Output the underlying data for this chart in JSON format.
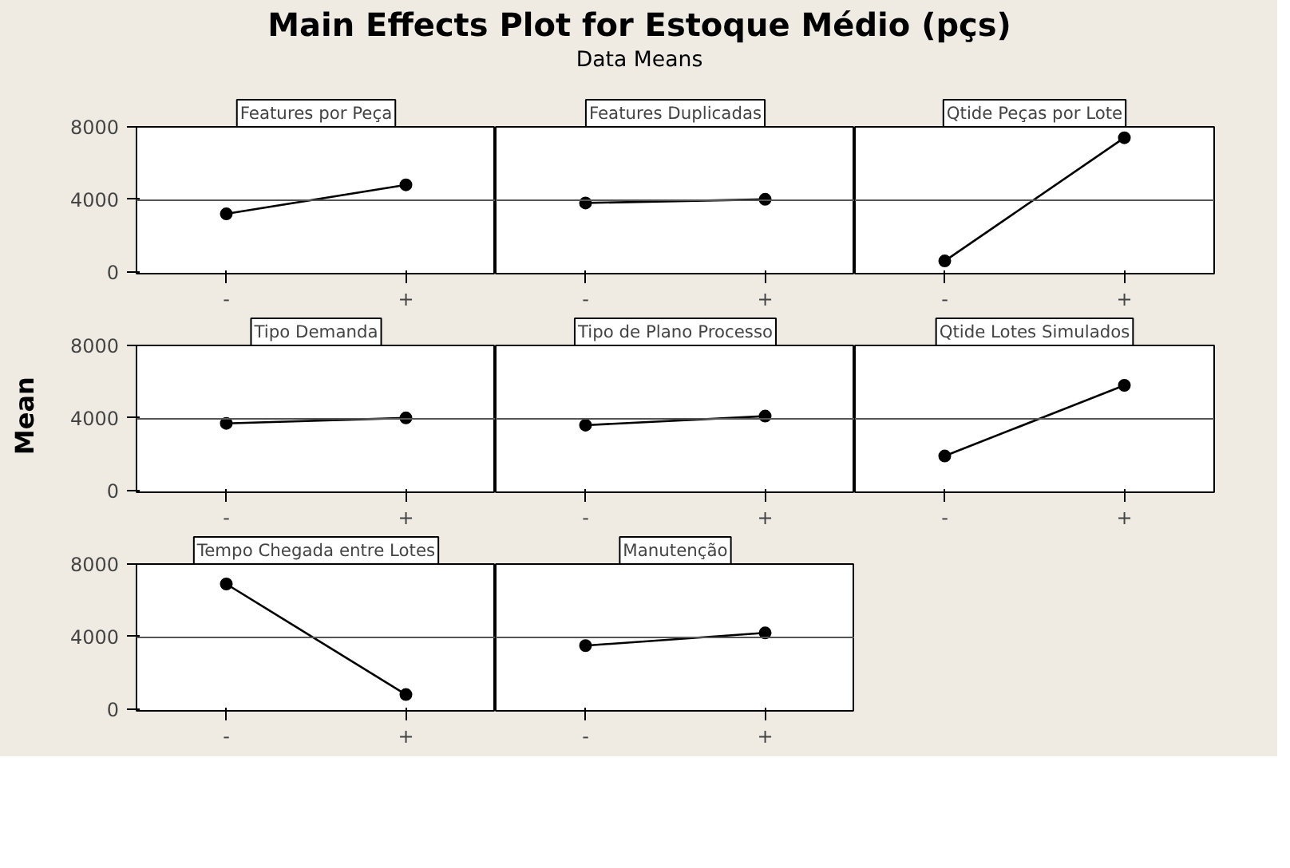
{
  "chart_data": [
    {
      "type": "other",
      "title": "Main Effects Plot for Estoque Médio (pçs)",
      "subtitle": "Data Means",
      "ylabel": "Mean"
    },
    {
      "type": "line",
      "title": "Features por Peça",
      "categories": [
        "-",
        "+"
      ],
      "series": [
        {
          "color": "#000000",
          "values": [
            3200,
            4800
          ]
        }
      ],
      "ylim": [
        -100,
        8000
      ],
      "yticks": [
        0,
        4000,
        8000
      ],
      "marker": "circle",
      "grid": false,
      "ref_lines": [
        {
          "axis": "y",
          "value": 3950,
          "color": "#555555"
        }
      ]
    },
    {
      "type": "line",
      "title": "Features Duplicadas",
      "categories": [
        "-",
        "+"
      ],
      "series": [
        {
          "color": "#000000",
          "values": [
            3800,
            4000
          ]
        }
      ],
      "ylim": [
        -100,
        8000
      ],
      "yticks": [
        0,
        4000,
        8000
      ],
      "tick_labels": "x",
      "marker": "circle",
      "grid": false,
      "ref_lines": [
        {
          "axis": "y",
          "value": 3950,
          "color": "#555555"
        }
      ]
    },
    {
      "type": "line",
      "title": "Qtide Peças por Lote",
      "categories": [
        "-",
        "+"
      ],
      "series": [
        {
          "color": "#000000",
          "values": [
            600,
            7400
          ]
        }
      ],
      "ylim": [
        -100,
        8000
      ],
      "yticks": [
        0,
        4000,
        8000
      ],
      "tick_labels": "x",
      "marker": "circle",
      "grid": false,
      "ref_lines": [
        {
          "axis": "y",
          "value": 3950,
          "color": "#555555"
        }
      ]
    },
    {
      "type": "line",
      "title": "Tipo Demanda",
      "categories": [
        "-",
        "+"
      ],
      "series": [
        {
          "color": "#000000",
          "values": [
            3700,
            4000
          ]
        }
      ],
      "ylim": [
        -100,
        8000
      ],
      "yticks": [
        0,
        4000,
        8000
      ],
      "marker": "circle",
      "grid": false,
      "ref_lines": [
        {
          "axis": "y",
          "value": 3950,
          "color": "#555555"
        }
      ]
    },
    {
      "type": "line",
      "title": "Tipo de Plano Processo",
      "categories": [
        "-",
        "+"
      ],
      "series": [
        {
          "color": "#000000",
          "values": [
            3600,
            4100
          ]
        }
      ],
      "ylim": [
        -100,
        8000
      ],
      "yticks": [
        0,
        4000,
        8000
      ],
      "tick_labels": "x",
      "marker": "circle",
      "grid": false,
      "ref_lines": [
        {
          "axis": "y",
          "value": 3950,
          "color": "#555555"
        }
      ]
    },
    {
      "type": "line",
      "title": "Qtide Lotes Simulados",
      "categories": [
        "-",
        "+"
      ],
      "series": [
        {
          "color": "#000000",
          "values": [
            1900,
            5800
          ]
        }
      ],
      "ylim": [
        -100,
        8000
      ],
      "yticks": [
        0,
        4000,
        8000
      ],
      "tick_labels": "x",
      "marker": "circle",
      "grid": false,
      "ref_lines": [
        {
          "axis": "y",
          "value": 3950,
          "color": "#555555"
        }
      ]
    },
    {
      "type": "line",
      "title": "Tempo Chegada entre Lotes",
      "categories": [
        "-",
        "+"
      ],
      "series": [
        {
          "color": "#000000",
          "values": [
            6900,
            800
          ]
        }
      ],
      "ylim": [
        -100,
        8000
      ],
      "yticks": [
        0,
        4000,
        8000
      ],
      "marker": "circle",
      "grid": false,
      "ref_lines": [
        {
          "axis": "y",
          "value": 3950,
          "color": "#555555"
        }
      ]
    },
    {
      "type": "line",
      "title": "Manutenção",
      "categories": [
        "-",
        "+"
      ],
      "series": [
        {
          "color": "#000000",
          "values": [
            3500,
            4200
          ]
        }
      ],
      "ylim": [
        -100,
        8000
      ],
      "yticks": [
        0,
        4000,
        8000
      ],
      "tick_labels": "x",
      "marker": "circle",
      "grid": false,
      "ref_lines": [
        {
          "axis": "y",
          "value": 3950,
          "color": "#555555"
        }
      ]
    }
  ]
}
